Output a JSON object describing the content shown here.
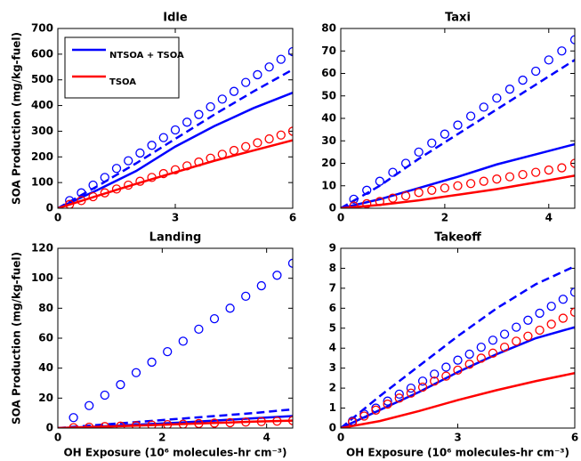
{
  "chart_data": [
    {
      "type": "line",
      "title": "Idle",
      "ylabel": "SOA Production (mg/kg-fuel)",
      "xlim": [
        0,
        6
      ],
      "ylim": [
        0,
        700
      ],
      "xticks": [
        0,
        3,
        6
      ],
      "yticks": [
        0,
        100,
        200,
        300,
        400,
        500,
        600,
        700
      ],
      "legend": "upper left",
      "series": [
        {
          "name": "NTSOA + TSOA",
          "color": "#0000ff",
          "style": "solid",
          "x": [
            0,
            1,
            2,
            3,
            4,
            5,
            6
          ],
          "values": [
            0,
            70,
            145,
            240,
            320,
            390,
            450
          ]
        },
        {
          "color": "#0000ff",
          "style": "dashed",
          "x": [
            0,
            1,
            2,
            3,
            4,
            5,
            6
          ],
          "values": [
            0,
            85,
            175,
            270,
            365,
            455,
            540
          ]
        },
        {
          "color": "#0000ff",
          "style": "markers",
          "x": [
            0.3,
            0.6,
            0.9,
            1.2,
            1.5,
            1.8,
            2.1,
            2.4,
            2.7,
            3.0,
            3.3,
            3.6,
            3.9,
            4.2,
            4.5,
            4.8,
            5.1,
            5.4,
            5.7,
            6.0
          ],
          "values": [
            30,
            60,
            90,
            120,
            155,
            185,
            215,
            245,
            275,
            305,
            335,
            365,
            395,
            425,
            455,
            490,
            520,
            550,
            580,
            610
          ]
        },
        {
          "name": "TSOA",
          "color": "#ff0000",
          "style": "solid",
          "x": [
            0,
            1,
            2,
            3,
            4,
            5,
            6
          ],
          "values": [
            0,
            48,
            95,
            140,
            185,
            225,
            265
          ]
        },
        {
          "color": "#ff0000",
          "style": "markers",
          "x": [
            0.3,
            0.6,
            0.9,
            1.2,
            1.5,
            1.8,
            2.1,
            2.4,
            2.7,
            3.0,
            3.3,
            3.6,
            3.9,
            4.2,
            4.5,
            4.8,
            5.1,
            5.4,
            5.7,
            6.0
          ],
          "values": [
            15,
            30,
            45,
            60,
            75,
            90,
            105,
            120,
            135,
            150,
            165,
            180,
            195,
            210,
            225,
            240,
            255,
            270,
            285,
            300
          ]
        }
      ]
    },
    {
      "type": "line",
      "title": "Taxi",
      "xlim": [
        0,
        4.5
      ],
      "ylim": [
        0,
        80
      ],
      "xticks": [
        0,
        2,
        4
      ],
      "yticks": [
        0,
        10,
        20,
        30,
        40,
        50,
        60,
        70,
        80
      ],
      "series": [
        {
          "color": "#0000ff",
          "style": "solid",
          "x": [
            0,
            0.75,
            1.5,
            2.25,
            3,
            3.75,
            4.5
          ],
          "values": [
            0,
            4,
            9,
            14,
            19.5,
            24,
            28.5
          ]
        },
        {
          "color": "#0000ff",
          "style": "dashed",
          "x": [
            0,
            0.75,
            1.5,
            2.25,
            3,
            3.75,
            4.5
          ],
          "values": [
            0,
            10,
            22,
            33,
            44,
            55,
            66
          ]
        },
        {
          "color": "#0000ff",
          "style": "markers",
          "x": [
            0.25,
            0.5,
            0.75,
            1.0,
            1.25,
            1.5,
            1.75,
            2.0,
            2.25,
            2.5,
            2.75,
            3.0,
            3.25,
            3.5,
            3.75,
            4.0,
            4.25,
            4.5
          ],
          "values": [
            4,
            8,
            12,
            16,
            20,
            25,
            29,
            33,
            37,
            41,
            45,
            49,
            53,
            57,
            61,
            66,
            70,
            75
          ]
        },
        {
          "color": "#ff0000",
          "style": "solid",
          "x": [
            0,
            0.75,
            1.5,
            2.25,
            3,
            3.75,
            4.5
          ],
          "values": [
            0,
            1.5,
            3.5,
            6,
            8.5,
            11.5,
            14.5
          ]
        },
        {
          "color": "#ff0000",
          "style": "markers",
          "x": [
            0.25,
            0.5,
            0.75,
            1.0,
            1.25,
            1.5,
            1.75,
            2.0,
            2.25,
            2.5,
            2.75,
            3.0,
            3.25,
            3.5,
            3.75,
            4.0,
            4.25,
            4.5
          ],
          "values": [
            1,
            2,
            3,
            4.5,
            5.5,
            7,
            8,
            9,
            10,
            11,
            12,
            13,
            14,
            15,
            16,
            17,
            18,
            20
          ]
        }
      ]
    },
    {
      "type": "line",
      "title": "Landing",
      "ylabel": "SOA Production (mg/kg-fuel)",
      "xlabel": "OH Exposure (10⁶  molecules-hr cm⁻³)",
      "xlim": [
        0,
        4.5
      ],
      "ylim": [
        0,
        120
      ],
      "xticks": [
        0,
        2,
        4
      ],
      "yticks": [
        0,
        20,
        40,
        60,
        80,
        100,
        120
      ],
      "series": [
        {
          "color": "#0000ff",
          "style": "solid",
          "x": [
            0,
            0.75,
            1.5,
            2.25,
            3,
            3.75,
            4.5
          ],
          "values": [
            0,
            1,
            2.2,
            3.5,
            5,
            6.5,
            8
          ]
        },
        {
          "color": "#0000ff",
          "style": "dashed",
          "x": [
            0,
            0.75,
            1.5,
            2.25,
            3,
            3.75,
            4.5
          ],
          "values": [
            0,
            2,
            4,
            6,
            8,
            10,
            12.5
          ]
        },
        {
          "color": "#0000ff",
          "style": "markers",
          "x": [
            0.3,
            0.6,
            0.9,
            1.2,
            1.5,
            1.8,
            2.1,
            2.4,
            2.7,
            3.0,
            3.3,
            3.6,
            3.9,
            4.2,
            4.5
          ],
          "values": [
            7,
            15,
            22,
            29,
            37,
            44,
            51,
            58,
            66,
            73,
            80,
            88,
            95,
            102,
            110
          ]
        },
        {
          "color": "#ff0000",
          "style": "solid",
          "x": [
            0,
            0.75,
            1.5,
            2.25,
            3,
            3.75,
            4.5
          ],
          "values": [
            0,
            0.8,
            1.6,
            2.5,
            3.4,
            4.3,
            5
          ]
        },
        {
          "color": "#ff0000",
          "style": "markers",
          "x": [
            0.3,
            0.6,
            0.9,
            1.2,
            1.5,
            1.8,
            2.1,
            2.4,
            2.7,
            3.0,
            3.3,
            3.6,
            3.9,
            4.2,
            4.5
          ],
          "values": [
            0.3,
            0.6,
            1,
            1.3,
            1.6,
            2,
            2.3,
            2.6,
            3,
            3.3,
            3.6,
            4,
            4.3,
            4.6,
            5
          ]
        }
      ]
    },
    {
      "type": "line",
      "title": "Takeoff",
      "xlabel": "OH Exposure (10⁶  molecules-hr cm⁻³)",
      "xlim": [
        0,
        6
      ],
      "ylim": [
        0,
        9
      ],
      "xticks": [
        0,
        3,
        6
      ],
      "yticks": [
        0,
        1,
        2,
        3,
        4,
        5,
        6,
        7,
        8,
        9
      ],
      "series": [
        {
          "color": "#0000ff",
          "style": "solid",
          "x": [
            0,
            1,
            2,
            3,
            4,
            5,
            6
          ],
          "values": [
            0,
            0.9,
            1.8,
            2.8,
            3.7,
            4.5,
            5.05
          ]
        },
        {
          "color": "#0000ff",
          "style": "dashed",
          "x": [
            0,
            1,
            2,
            3,
            4,
            5,
            6
          ],
          "values": [
            0,
            1.6,
            3.1,
            4.6,
            6,
            7.2,
            8.1
          ]
        },
        {
          "color": "#0000ff",
          "style": "markers",
          "x": [
            0.3,
            0.6,
            0.9,
            1.2,
            1.5,
            1.8,
            2.1,
            2.4,
            2.7,
            3.0,
            3.3,
            3.6,
            3.9,
            4.2,
            4.5,
            4.8,
            5.1,
            5.4,
            5.7,
            6.0
          ],
          "values": [
            0.35,
            0.7,
            1.0,
            1.35,
            1.7,
            2.0,
            2.35,
            2.7,
            3.05,
            3.4,
            3.7,
            4.05,
            4.4,
            4.7,
            5.05,
            5.4,
            5.75,
            6.1,
            6.45,
            6.8
          ]
        },
        {
          "color": "#ff0000",
          "style": "solid",
          "x": [
            0,
            1,
            2,
            3,
            4,
            5,
            6
          ],
          "values": [
            0,
            0.35,
            0.85,
            1.4,
            1.9,
            2.35,
            2.75
          ]
        },
        {
          "color": "#ff0000",
          "style": "markers",
          "x": [
            0.3,
            0.6,
            0.9,
            1.2,
            1.5,
            1.8,
            2.1,
            2.4,
            2.7,
            3.0,
            3.3,
            3.6,
            3.9,
            4.2,
            4.5,
            4.8,
            5.1,
            5.4,
            5.7,
            6.0
          ],
          "values": [
            0.3,
            0.6,
            0.9,
            1.2,
            1.5,
            1.75,
            2.05,
            2.35,
            2.6,
            2.9,
            3.2,
            3.5,
            3.75,
            4.05,
            4.35,
            4.6,
            4.9,
            5.2,
            5.5,
            5.8
          ]
        }
      ]
    }
  ]
}
